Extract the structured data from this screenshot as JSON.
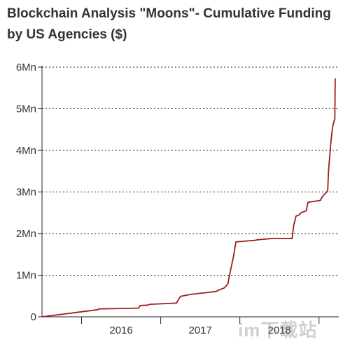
{
  "chart_data": {
    "type": "line",
    "title": "Blockchain Analysis \"Moons\"- Cumulative Funding by US Agencies ($)",
    "xlabel": "",
    "ylabel": "",
    "x_range": [
      2015.0,
      2018.75
    ],
    "ylim": [
      0,
      6000000
    ],
    "y_ticks": [
      {
        "value": 0,
        "label": "0"
      },
      {
        "value": 1000000,
        "label": "1Mn"
      },
      {
        "value": 2000000,
        "label": "2Mn"
      },
      {
        "value": 3000000,
        "label": "3Mn"
      },
      {
        "value": 4000000,
        "label": "4Mn"
      },
      {
        "value": 5000000,
        "label": "5Mn"
      },
      {
        "value": 6000000,
        "label": "6Mn"
      }
    ],
    "x_ticks": [
      {
        "value": 2016,
        "label": "2016"
      },
      {
        "value": 2017,
        "label": "2017"
      },
      {
        "value": 2018,
        "label": "2018"
      }
    ],
    "grid": "horizontal dotted",
    "line_color": "#9b1c20",
    "series": [
      {
        "x": [
          2015.0,
          2015.7,
          2015.72,
          2015.98,
          2016.02,
          2016.22,
          2016.24,
          2016.34,
          2016.36,
          2016.7,
          2016.72,
          2016.75,
          2016.88,
          2017.12,
          2017.2,
          2017.24,
          2017.26,
          2017.28,
          2017.3,
          2017.33,
          2017.35,
          2017.37,
          2017.38,
          2017.42,
          2017.45,
          2017.7,
          2017.72,
          2017.9,
          2018.16,
          2018.18,
          2018.21,
          2018.25,
          2018.27,
          2018.34,
          2018.36,
          2018.52,
          2018.53,
          2018.57,
          2018.6,
          2018.61,
          2018.62,
          2018.65,
          2018.67,
          2018.69,
          2018.7,
          2018.705
        ],
        "y": [
          0,
          170000,
          190000,
          200000,
          200000,
          210000,
          270000,
          280000,
          300000,
          330000,
          400000,
          490000,
          540000,
          590000,
          610000,
          650000,
          660000,
          680000,
          690000,
          750000,
          800000,
          1020000,
          1100000,
          1450000,
          1800000,
          1840000,
          1850000,
          1880000,
          1880000,
          2200000,
          2420000,
          2450000,
          2500000,
          2550000,
          2750000,
          2800000,
          2850000,
          2950000,
          3000000,
          3050000,
          3500000,
          4200000,
          4550000,
          4700000,
          4750000,
          5730000
        ]
      }
    ]
  },
  "watermark": "im下载站"
}
